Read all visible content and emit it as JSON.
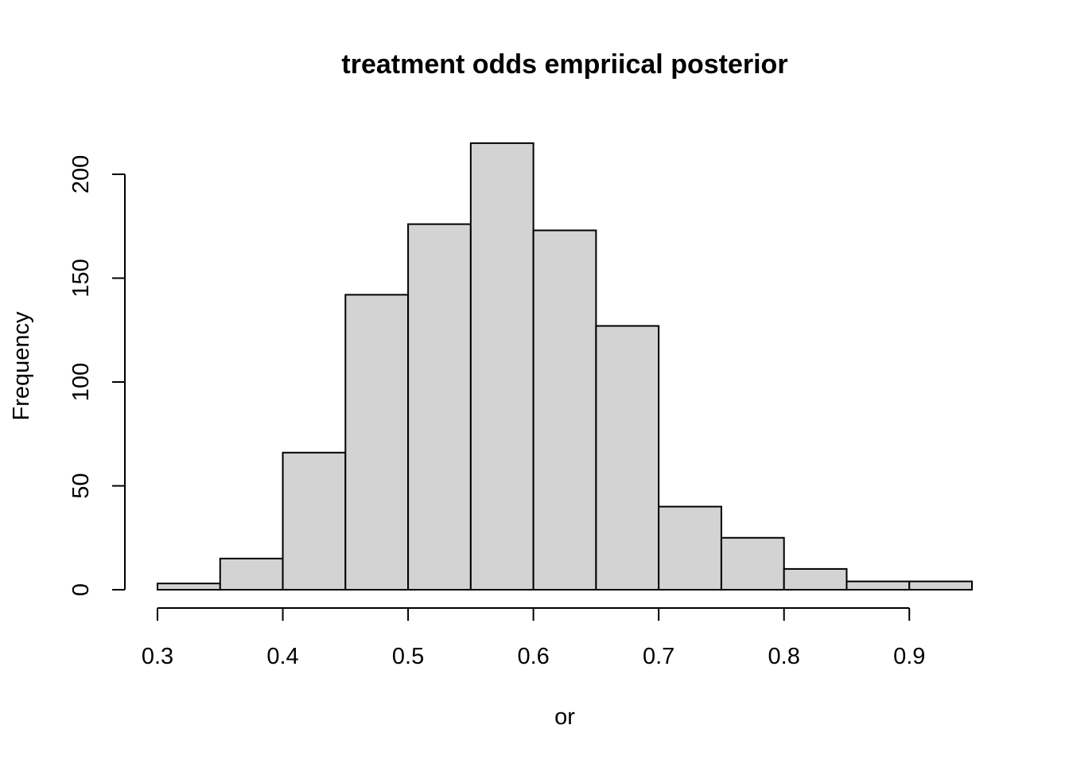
{
  "chart_data": {
    "type": "bar",
    "title": "treatment odds empriical posterior",
    "xlabel": "or",
    "ylabel": "Frequency",
    "bin_edges": [
      0.3,
      0.35,
      0.4,
      0.45,
      0.5,
      0.55,
      0.6,
      0.65,
      0.7,
      0.75,
      0.8,
      0.85,
      0.9,
      0.95
    ],
    "values": [
      3,
      15,
      66,
      142,
      176,
      215,
      173,
      127,
      40,
      25,
      10,
      4,
      4
    ],
    "xlim": [
      0.3,
      0.95
    ],
    "ylim": [
      0,
      215
    ],
    "x_ticks": [
      0.3,
      0.4,
      0.5,
      0.6,
      0.7,
      0.8,
      0.9
    ],
    "x_tick_labels": [
      "0.3",
      "0.4",
      "0.5",
      "0.6",
      "0.7",
      "0.8",
      "0.9"
    ],
    "y_ticks": [
      0,
      50,
      100,
      150,
      200
    ],
    "y_tick_labels": [
      "0",
      "50",
      "100",
      "150",
      "200"
    ],
    "bar_color": "#d3d3d3",
    "edge_color": "#000000",
    "grid": false,
    "legend": "none"
  }
}
